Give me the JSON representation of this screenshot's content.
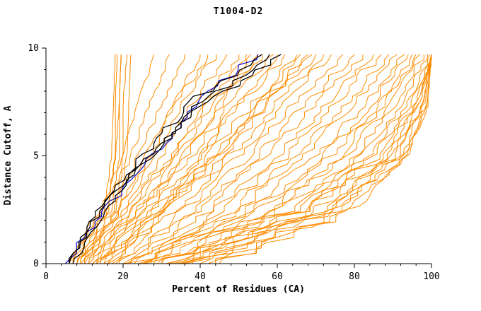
{
  "chart_data": {
    "type": "line",
    "title": "T1004-D2",
    "xlabel": "Percent of Residues (CA)",
    "ylabel": "Distance Cutoff, A",
    "xlim": [
      0,
      100
    ],
    "ylim": [
      0,
      10
    ],
    "x_ticks": [
      0,
      20,
      40,
      60,
      80,
      100
    ],
    "y_ticks": [
      0,
      5,
      10
    ],
    "grid": false,
    "legend": "none",
    "anchor_cutoffs": [
      0,
      2.5,
      5,
      7.5,
      9.7
    ],
    "colors": {
      "orange": "#ff8c00",
      "blue": "#1717c8",
      "black": "#000000"
    },
    "series": [
      {
        "c": "orange",
        "x": [
          7,
          16,
          18,
          18,
          18.5
        ]
      },
      {
        "c": "orange",
        "x": [
          8,
          17,
          19,
          19,
          19.5
        ]
      },
      {
        "c": "orange",
        "x": [
          6,
          15,
          17,
          17.5,
          18
        ]
      },
      {
        "c": "orange",
        "x": [
          9,
          18,
          20,
          20,
          21
        ]
      },
      {
        "c": "orange",
        "x": [
          10,
          19,
          21,
          21.5,
          22
        ]
      },
      {
        "c": "orange",
        "x": [
          8,
          16,
          18,
          19,
          19.5
        ]
      },
      {
        "c": "orange",
        "x": [
          6,
          14,
          20,
          24,
          28
        ]
      },
      {
        "c": "orange",
        "x": [
          7,
          15,
          22,
          27,
          32
        ]
      },
      {
        "c": "orange",
        "x": [
          8,
          17,
          24,
          30,
          36
        ]
      },
      {
        "c": "orange",
        "x": [
          9,
          18,
          26,
          33,
          40
        ]
      },
      {
        "c": "orange",
        "x": [
          10,
          20,
          28,
          36,
          44
        ]
      },
      {
        "c": "orange",
        "x": [
          11,
          21,
          30,
          38,
          47
        ]
      },
      {
        "c": "orange",
        "x": [
          12,
          22,
          32,
          41,
          50
        ]
      },
      {
        "c": "orange",
        "x": [
          12,
          24,
          34,
          44,
          53
        ]
      },
      {
        "c": "orange",
        "x": [
          13,
          25,
          36,
          46,
          56
        ]
      },
      {
        "c": "orange",
        "x": [
          14,
          26,
          38,
          48,
          59
        ]
      },
      {
        "c": "orange",
        "x": [
          15,
          28,
          40,
          51,
          62
        ]
      },
      {
        "c": "orange",
        "x": [
          16,
          30,
          42,
          54,
          65
        ]
      },
      {
        "c": "orange",
        "x": [
          16,
          31,
          44,
          56,
          68
        ]
      },
      {
        "c": "orange",
        "x": [
          17,
          32,
          46,
          58,
          70
        ]
      },
      {
        "c": "orange",
        "x": [
          10,
          22,
          33,
          42,
          52
        ]
      },
      {
        "c": "orange",
        "x": [
          11,
          24,
          36,
          45,
          55
        ]
      },
      {
        "c": "orange",
        "x": [
          13,
          27,
          40,
          50,
          60
        ]
      },
      {
        "c": "orange",
        "x": [
          9,
          19,
          27,
          34,
          42
        ]
      },
      {
        "c": "orange",
        "x": [
          14,
          29,
          43,
          55,
          66
        ]
      },
      {
        "c": "orange",
        "x": [
          15,
          30,
          45,
          57,
          69
        ]
      },
      {
        "c": "orange",
        "x": [
          18,
          34,
          48,
          60,
          72
        ]
      },
      {
        "c": "orange",
        "x": [
          19,
          36,
          50,
          62,
          74
        ]
      },
      {
        "c": "orange",
        "x": [
          20,
          38,
          52,
          65,
          77
        ]
      },
      {
        "c": "orange",
        "x": [
          21,
          40,
          55,
          68,
          80
        ]
      },
      {
        "c": "orange",
        "x": [
          22,
          42,
          57,
          70,
          82
        ]
      },
      {
        "c": "orange",
        "x": [
          23,
          44,
          60,
          73,
          85
        ]
      },
      {
        "c": "orange",
        "x": [
          24,
          46,
          62,
          75,
          87
        ]
      },
      {
        "c": "orange",
        "x": [
          25,
          48,
          65,
          78,
          89
        ]
      },
      {
        "c": "orange",
        "x": [
          26,
          50,
          67,
          80,
          91
        ]
      },
      {
        "c": "orange",
        "x": [
          27,
          52,
          70,
          83,
          93
        ]
      },
      {
        "c": "orange",
        "x": [
          28,
          54,
          72,
          85,
          94
        ]
      },
      {
        "c": "orange",
        "x": [
          29,
          56,
          74,
          87,
          95
        ]
      },
      {
        "c": "orange",
        "x": [
          30,
          58,
          76,
          88,
          96
        ]
      },
      {
        "c": "orange",
        "x": [
          31,
          60,
          78,
          90,
          97
        ]
      },
      {
        "c": "orange",
        "x": [
          32,
          62,
          80,
          91,
          98
        ]
      },
      {
        "c": "orange",
        "x": [
          33,
          64,
          82,
          93,
          99
        ]
      },
      {
        "c": "orange",
        "x": [
          34,
          66,
          84,
          94,
          99.5
        ]
      },
      {
        "c": "orange",
        "x": [
          35,
          68,
          86,
          95,
          100
        ]
      },
      {
        "c": "orange",
        "x": [
          36,
          70,
          88,
          96,
          100
        ]
      },
      {
        "c": "orange",
        "x": [
          38,
          72,
          90,
          97,
          100
        ]
      },
      {
        "c": "orange",
        "x": [
          40,
          74,
          91,
          98,
          100
        ]
      },
      {
        "c": "orange",
        "x": [
          42,
          76,
          92,
          98.5,
          100
        ]
      },
      {
        "c": "orange",
        "x": [
          44,
          78,
          93,
          99,
          100
        ]
      },
      {
        "c": "orange",
        "x": [
          45,
          80,
          94,
          99,
          100
        ]
      },
      {
        "c": "orange",
        "x": [
          30,
          70,
          90,
          98,
          100
        ]
      },
      {
        "c": "orange",
        "x": [
          25,
          65,
          88,
          97,
          100
        ]
      },
      {
        "c": "orange",
        "x": [
          20,
          60,
          85,
          96,
          100
        ]
      },
      {
        "c": "orange",
        "x": [
          35,
          75,
          93,
          99,
          100
        ]
      },
      {
        "c": "blue",
        "x": [
          5,
          15,
          28,
          39,
          55
        ]
      },
      {
        "c": "black",
        "x": [
          6,
          14,
          27,
          40,
          58
        ]
      },
      {
        "c": "black",
        "x": [
          7,
          15,
          26,
          41,
          61
        ]
      },
      {
        "c": "black",
        "x": [
          6,
          13,
          25,
          38,
          56
        ]
      }
    ]
  }
}
